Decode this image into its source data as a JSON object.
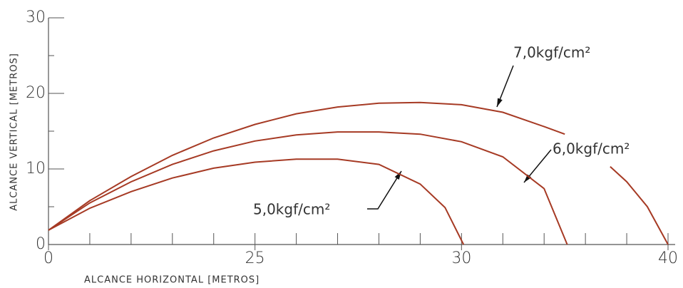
{
  "chart_data": {
    "type": "line",
    "x_label": "ALCANCE HORIZONTAL [METROS]",
    "y_label": "ALCANCE VERTICAL [METROS]",
    "xlim": [
      0,
      15
    ],
    "xticks": [
      {
        "value": 0,
        "label": "0"
      },
      {
        "value": 5,
        "label": "25"
      },
      {
        "value": 10,
        "label": "30"
      },
      {
        "value": 15,
        "label": "40"
      }
    ],
    "xminor": [
      1,
      2,
      3,
      4,
      6,
      7,
      8,
      9,
      11,
      12,
      13,
      14
    ],
    "ylim": [
      0,
      30
    ],
    "yticks": [
      0,
      10,
      20,
      30
    ],
    "yminor": [
      5,
      15,
      25
    ],
    "series": [
      {
        "name": "7,0kgf/cm²",
        "color": "#a63a24",
        "x": [
          0,
          1,
          2,
          3,
          4,
          5,
          6,
          7,
          8,
          9,
          10,
          11,
          12,
          12.5,
          13,
          13.6,
          14,
          14.5,
          15
        ],
        "values": [
          1.9,
          5.8,
          9.0,
          11.8,
          14.1,
          15.9,
          17.3,
          18.2,
          18.7,
          18.8,
          18.5,
          17.5,
          15.6,
          14.6,
          null,
          10.3,
          8.3,
          5.0,
          0
        ]
      },
      {
        "name": "6,0kgf/cm²",
        "color": "#a63a24",
        "x": [
          0,
          1,
          2,
          3,
          4,
          5,
          6,
          7,
          8,
          9,
          10,
          11,
          12,
          12.56
        ],
        "values": [
          1.9,
          5.5,
          8.3,
          10.6,
          12.4,
          13.7,
          14.5,
          14.9,
          14.9,
          14.6,
          13.6,
          11.6,
          7.4,
          0
        ]
      },
      {
        "name": "5,0kgf/cm²",
        "color": "#a63a24",
        "x": [
          0,
          1,
          2,
          3,
          4,
          5,
          6,
          7,
          8,
          9,
          9.6,
          10.05
        ],
        "values": [
          1.9,
          4.8,
          7.0,
          8.8,
          10.1,
          10.9,
          11.3,
          11.3,
          10.6,
          8.0,
          4.9,
          0
        ]
      }
    ]
  }
}
